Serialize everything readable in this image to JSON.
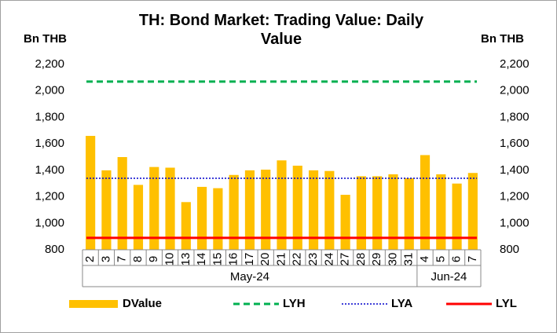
{
  "chart_data": {
    "type": "bar",
    "title": "TH: Bond Market: Trading Value: Daily Value",
    "y_label": "Bn THB",
    "y2_label": "Bn THB",
    "groups": [
      {
        "label": "May-24",
        "categories": [
          "2",
          "3",
          "7",
          "8",
          "9",
          "10",
          "13",
          "14",
          "15",
          "16",
          "17",
          "20",
          "21",
          "22",
          "23",
          "24",
          "27",
          "28",
          "29",
          "30",
          "31"
        ]
      },
      {
        "label": "Jun-24",
        "categories": [
          "4",
          "5",
          "6",
          "7"
        ]
      }
    ],
    "series": [
      {
        "name": "DValue",
        "type": "bar",
        "color": "#ffc000",
        "values": [
          1660,
          1400,
          1500,
          1290,
          1425,
          1420,
          1160,
          1275,
          1265,
          1365,
          1400,
          1405,
          1475,
          1435,
          1400,
          1395,
          1215,
          1355,
          1355,
          1370,
          1340,
          1515,
          1370,
          1300,
          1380
        ]
      },
      {
        "name": "LYH",
        "type": "hline",
        "style": "dashed",
        "color": "#00b050",
        "value": 2070
      },
      {
        "name": "LYA",
        "type": "hline",
        "style": "dotted",
        "color": "#0000cc",
        "value": 1340
      },
      {
        "name": "LYL",
        "type": "hline",
        "style": "solid",
        "color": "#ff0000",
        "value": 890
      }
    ],
    "ylim": [
      800,
      2200
    ],
    "yticks": [
      800,
      {
        "value": 1000,
        "label": "1,000"
      },
      {
        "value": 1200,
        "label": "1,200"
      },
      {
        "value": 1400,
        "label": "1,400"
      },
      {
        "value": 1600,
        "label": "1,600"
      },
      {
        "value": 1800,
        "label": "1,800"
      },
      {
        "value": 2000,
        "label": "2,000"
      },
      {
        "value": 2200,
        "label": "2,200"
      }
    ],
    "y2lim": [
      800,
      2200
    ],
    "y2ticks": [
      800,
      {
        "value": 1000,
        "label": "1,000"
      },
      {
        "value": 1200,
        "label": "1,200"
      },
      {
        "value": 1400,
        "label": "1,400"
      },
      {
        "value": 1600,
        "label": "1,600"
      },
      {
        "value": 1800,
        "label": "1,800"
      },
      {
        "value": 2000,
        "label": "2,000"
      },
      {
        "value": 2200,
        "label": "2,200"
      }
    ],
    "grid": false,
    "legend": "bottom"
  }
}
